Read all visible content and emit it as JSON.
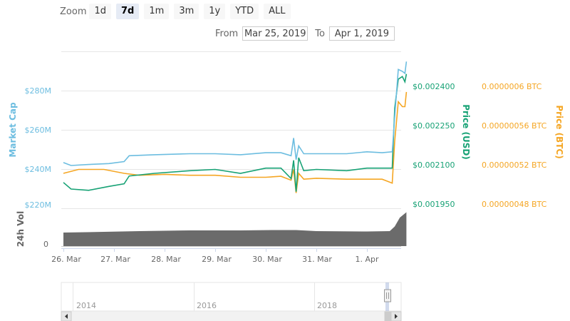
{
  "zoom": {
    "label": "Zoom",
    "buttons": [
      "1d",
      "7d",
      "1m",
      "3m",
      "1y",
      "YTD",
      "ALL"
    ],
    "active": "7d"
  },
  "range": {
    "from_label": "From",
    "from_value": "Mar 25, 2019",
    "to_label": "To",
    "to_value": "Apr 1, 2019"
  },
  "colors": {
    "market_cap": "#6cbde0",
    "price_usd": "#17a275",
    "price_btc": "#f5a623",
    "volume": "#6b6b6b"
  },
  "chart_data": {
    "type": "line",
    "x_tick_labels": [
      "26. Mar",
      "27. Mar",
      "28. Mar",
      "29. Mar",
      "30. Mar",
      "31. Mar",
      "1. Apr"
    ],
    "axes": {
      "market_cap": {
        "title": "Market Cap",
        "ticks": [
          "$220M",
          "$240M",
          "$260M",
          "$280M"
        ],
        "range": [
          220,
          280
        ]
      },
      "price_usd": {
        "title": "Price (USD)",
        "ticks": [
          "$0.001950",
          "$0.002100",
          "$0.002250",
          "$0.002400"
        ],
        "range": [
          0.00195,
          0.0024
        ]
      },
      "price_btc": {
        "title": "Price (BTC)",
        "ticks": [
          "0.00000048 BTC",
          "0.00000052 BTC",
          "0.00000056 BTC",
          "0.0000006 BTC"
        ],
        "range": [
          4.8e-07,
          6e-07
        ]
      },
      "volume": {
        "title": "24h Vol",
        "ticks": [
          "0"
        ]
      }
    },
    "series": [
      {
        "name": "Market Cap",
        "unit": "USD millions",
        "x_days": [
          0,
          0.15,
          0.5,
          0.9,
          1.2,
          1.3,
          1.8,
          2.5,
          3.0,
          3.5,
          4.0,
          4.3,
          4.5,
          4.55,
          4.6,
          4.65,
          4.75,
          5.0,
          5.6,
          6.0,
          6.3,
          6.5,
          6.55,
          6.62,
          6.7,
          6.75,
          6.78
        ],
        "values": [
          241.5,
          240,
          240.5,
          241,
          242,
          245,
          245.5,
          246,
          246,
          245.5,
          246.5,
          246.5,
          245,
          254,
          243,
          250,
          246,
          246,
          246,
          247,
          246.5,
          247,
          265,
          289,
          288,
          287,
          293
        ]
      },
      {
        "name": "Price (USD)",
        "unit": "USD",
        "x_days": [
          0,
          0.15,
          0.5,
          0.9,
          1.2,
          1.3,
          1.8,
          2.5,
          3.0,
          3.5,
          4.0,
          4.3,
          4.5,
          4.55,
          4.6,
          4.65,
          4.75,
          5.0,
          5.6,
          6.0,
          6.3,
          6.5,
          6.55,
          6.62,
          6.7,
          6.75,
          6.78
        ],
        "values": [
          0.002035,
          0.00201,
          0.002005,
          0.00202,
          0.00203,
          0.00206,
          0.00207,
          0.00208,
          0.002085,
          0.00207,
          0.00209,
          0.00209,
          0.00205,
          0.00212,
          0.002,
          0.00213,
          0.00208,
          0.002085,
          0.00208,
          0.00209,
          0.00209,
          0.00209,
          0.00232,
          0.00243,
          0.00244,
          0.00242,
          0.00245
        ]
      },
      {
        "name": "Price (BTC)",
        "unit": "BTC",
        "x_days": [
          0,
          0.3,
          0.8,
          1.2,
          1.5,
          2.0,
          2.5,
          3.0,
          3.5,
          4.0,
          4.3,
          4.5,
          4.55,
          4.6,
          4.65,
          4.75,
          5.0,
          5.6,
          6.0,
          6.3,
          6.5,
          6.55,
          6.62,
          6.7,
          6.75,
          6.78
        ],
        "values": [
          5.12e-07,
          5.16e-07,
          5.16e-07,
          5.12e-07,
          5.1e-07,
          5.11e-07,
          5.1e-07,
          5.1e-07,
          5.08e-07,
          5.08e-07,
          5.09e-07,
          5.05e-07,
          5.16e-07,
          4.92e-07,
          5.12e-07,
          5.06e-07,
          5.07e-07,
          5.06e-07,
          5.06e-07,
          5.06e-07,
          5.02e-07,
          5.45e-07,
          5.85e-07,
          5.8e-07,
          5.8e-07,
          5.95e-07
        ]
      },
      {
        "name": "24h Vol",
        "unit": "relative level (0-1)",
        "x_days": [
          0,
          0.8,
          1.5,
          2.5,
          3.5,
          4.2,
          4.6,
          5.0,
          6.0,
          6.45,
          6.55,
          6.65,
          6.78
        ],
        "values": [
          0.38,
          0.4,
          0.42,
          0.44,
          0.44,
          0.45,
          0.45,
          0.42,
          0.41,
          0.42,
          0.55,
          0.8,
          0.95
        ]
      }
    ],
    "navigator": {
      "year_labels": [
        "2014",
        "2016",
        "2018"
      ]
    }
  }
}
